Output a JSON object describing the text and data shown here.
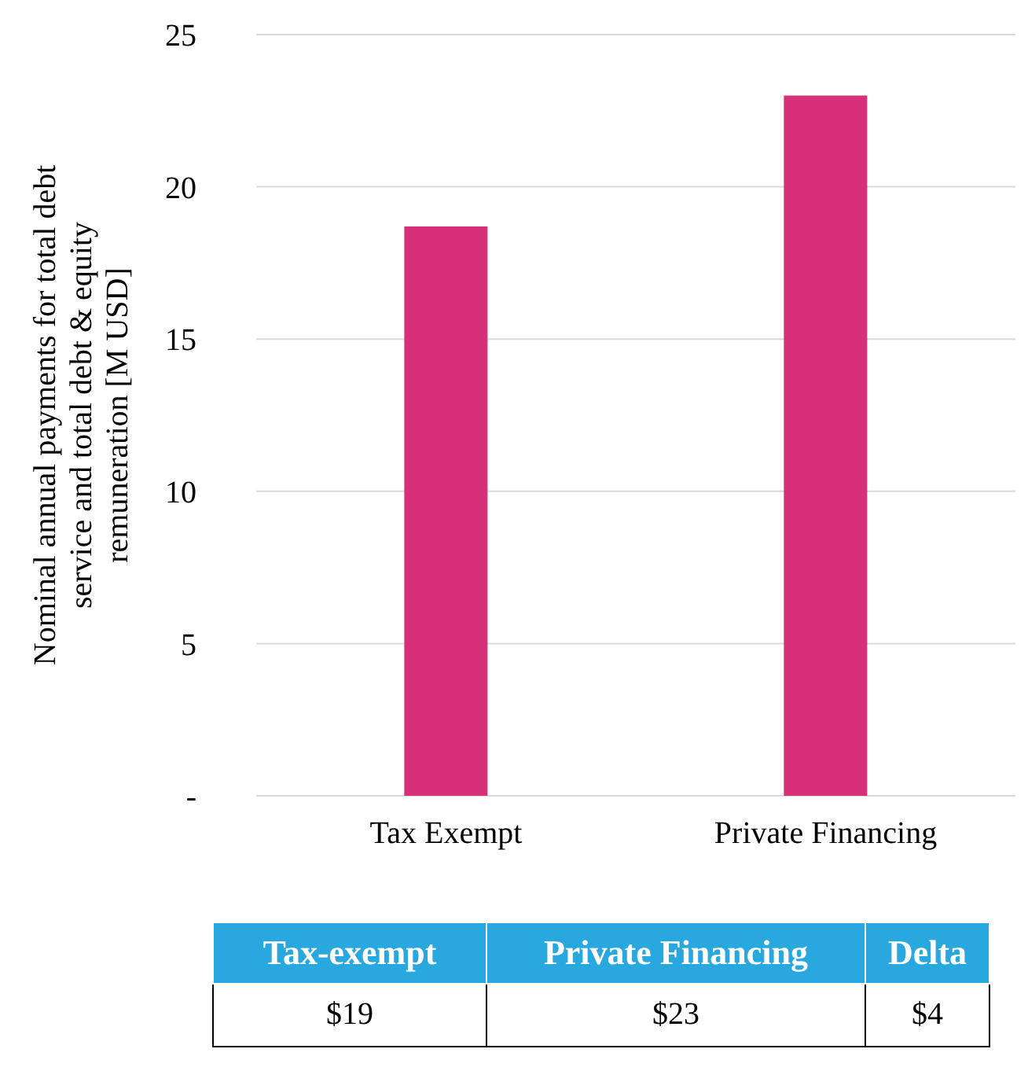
{
  "chart_data": [
    {
      "type": "bar",
      "ylabel": "Nominal annual payments for total debt service and total debt & equity remuneration [M USD]",
      "categories": [
        "Tax Exempt",
        "Private Financing"
      ],
      "values": [
        18.7,
        23.0
      ],
      "color": "#d63079",
      "ylim": [
        0,
        25
      ],
      "yticks": [
        {
          "value": 0,
          "label": "-"
        },
        5,
        10,
        15,
        20,
        25
      ],
      "grid": "y",
      "legend": false
    },
    {
      "type": "other",
      "categories": [
        "Tax-exempt",
        "Private Financing",
        "Delta"
      ],
      "value_labels": [
        "$19",
        "$23",
        "$4"
      ],
      "color": "#29a8e0"
    }
  ]
}
